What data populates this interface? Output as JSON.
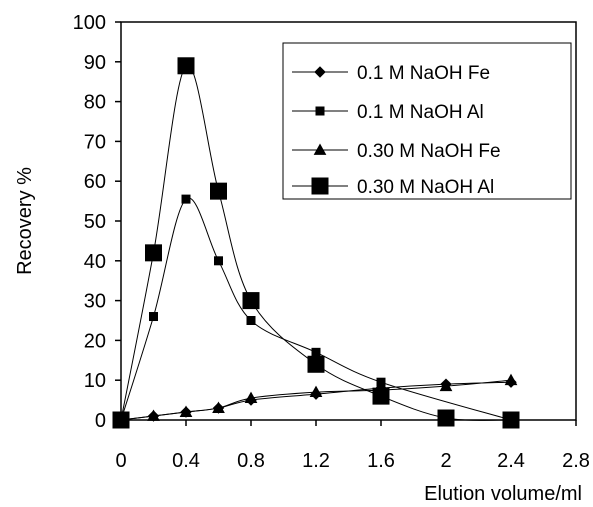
{
  "chart_data": {
    "type": "line",
    "title": "",
    "xlabel": "Elution volume/ml",
    "ylabel": "Recovery %",
    "xlim": [
      0,
      2.8
    ],
    "ylim": [
      0,
      100
    ],
    "xticks": [
      "0",
      "0.4",
      "0.8",
      "1.2",
      "1.6",
      "2",
      "2.4",
      "2.8"
    ],
    "yticks": [
      "0",
      "10",
      "20",
      "30",
      "40",
      "50",
      "60",
      "70",
      "80",
      "90",
      "100"
    ],
    "grid": false,
    "legend_position": "top-right",
    "series": [
      {
        "name": "0.1 M NaOH Fe",
        "marker": "diamond",
        "x": [
          0,
          0.2,
          0.4,
          0.6,
          0.8,
          1.2,
          1.6,
          2.0,
          2.4
        ],
        "y": [
          0,
          1,
          2,
          3,
          5,
          6.5,
          8,
          9,
          9.5
        ]
      },
      {
        "name": "0.1 M NaOH Al",
        "marker": "square-small",
        "x": [
          0,
          0.2,
          0.4,
          0.6,
          0.8,
          1.2,
          1.6,
          2.4
        ],
        "y": [
          0,
          26,
          55.5,
          40,
          25,
          17,
          9.5,
          0
        ]
      },
      {
        "name": "0.30 M NaOH Fe",
        "marker": "triangle",
        "x": [
          0,
          0.2,
          0.4,
          0.6,
          0.8,
          1.2,
          1.6,
          2.0,
          2.4
        ],
        "y": [
          0,
          1,
          2,
          3,
          5.5,
          7,
          7.5,
          8.5,
          10
        ]
      },
      {
        "name": "0.30 M NaOH Al",
        "marker": "square-large",
        "x": [
          0,
          0.2,
          0.4,
          0.6,
          0.8,
          1.2,
          1.6,
          2.0,
          2.4
        ],
        "y": [
          0,
          42,
          89,
          57.5,
          30,
          14,
          6,
          0.5,
          0
        ]
      }
    ]
  }
}
